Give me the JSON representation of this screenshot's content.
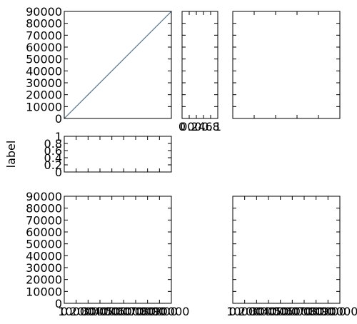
{
  "chart_data": [
    {
      "id": "main",
      "type": "line",
      "series": [
        {
          "x": [
            0,
            90000
          ],
          "y": [
            0,
            90000
          ],
          "color": "#4c6f8c"
        }
      ],
      "xlim": [
        0,
        90000
      ],
      "ylim": [
        0,
        90000
      ],
      "xticks": [],
      "xticklabels": [],
      "yticks": [
        0,
        10000,
        20000,
        30000,
        40000,
        50000,
        60000,
        70000,
        80000,
        90000
      ],
      "yticklabels": [
        "0",
        "10000",
        "20000",
        "30000",
        "40000",
        "50000",
        "60000",
        "70000",
        "80000",
        "90000"
      ],
      "xlabel": "",
      "ylabel": "",
      "grid": false
    },
    {
      "id": "narrow",
      "type": "line",
      "series": [],
      "xlim": [
        0,
        1
      ],
      "ylim": [
        0,
        90000
      ],
      "xticks": [
        0,
        0.2,
        0.4,
        0.6,
        0.8,
        1
      ],
      "xticklabels": [
        "0",
        "0.2",
        "0.4",
        "0.6",
        "0.8",
        "1"
      ],
      "yticks": [
        0,
        10000,
        20000,
        30000,
        40000,
        50000,
        60000,
        70000,
        80000,
        90000
      ],
      "yticklabels": [],
      "xlabel": "",
      "ylabel": "",
      "grid": false
    },
    {
      "id": "top-right",
      "type": "line",
      "series": [],
      "xlim": [
        0,
        1
      ],
      "ylim": [
        0,
        90000
      ],
      "xticks": [
        0,
        0.2,
        0.4,
        0.6,
        0.8,
        1
      ],
      "xticklabels": [],
      "yticks": [
        0,
        10000,
        20000,
        30000,
        40000,
        50000,
        60000,
        70000,
        80000,
        90000
      ],
      "yticklabels": [],
      "xlabel": "",
      "ylabel": "",
      "grid": false
    },
    {
      "id": "short",
      "type": "line",
      "series": [],
      "xlim": [
        0,
        90000
      ],
      "ylim": [
        0,
        1
      ],
      "xticks": [
        0,
        10000,
        20000,
        30000,
        40000,
        50000,
        60000,
        70000,
        80000,
        90000
      ],
      "xticklabels": [],
      "yticks": [
        0,
        0.2,
        0.4,
        0.6,
        0.8,
        1
      ],
      "yticklabels": [
        "0",
        "0.2",
        "0.4",
        "0.6",
        "0.8",
        "1"
      ],
      "xlabel": "",
      "ylabel": "label",
      "grid": false
    },
    {
      "id": "bottom-left",
      "type": "line",
      "series": [],
      "xlim": [
        0,
        90000
      ],
      "ylim": [
        0,
        90000
      ],
      "xticks": [
        0,
        10000,
        20000,
        30000,
        40000,
        50000,
        60000,
        70000,
        80000,
        90000
      ],
      "xticklabels": [
        "0",
        "10000",
        "20000",
        "30000",
        "40000",
        "50000",
        "60000",
        "70000",
        "80000",
        "90000"
      ],
      "yticks": [
        0,
        10000,
        20000,
        30000,
        40000,
        50000,
        60000,
        70000,
        80000,
        90000
      ],
      "yticklabels": [
        "0",
        "10000",
        "20000",
        "30000",
        "40000",
        "50000",
        "60000",
        "70000",
        "80000",
        "90000"
      ],
      "xlabel": "",
      "ylabel": "",
      "grid": false
    },
    {
      "id": "bottom-right",
      "type": "line",
      "series": [],
      "xlim": [
        0,
        90000
      ],
      "ylim": [
        0,
        90000
      ],
      "xticks": [
        0,
        10000,
        20000,
        30000,
        40000,
        50000,
        60000,
        70000,
        80000,
        90000
      ],
      "xticklabels": [
        "0",
        "10000",
        "20000",
        "30000",
        "40000",
        "50000",
        "60000",
        "70000",
        "80000",
        "90000"
      ],
      "yticks": [
        0,
        10000,
        20000,
        30000,
        40000,
        50000,
        60000,
        70000,
        80000,
        90000
      ],
      "yticklabels": [],
      "xlabel": "",
      "ylabel": "",
      "grid": false
    }
  ]
}
